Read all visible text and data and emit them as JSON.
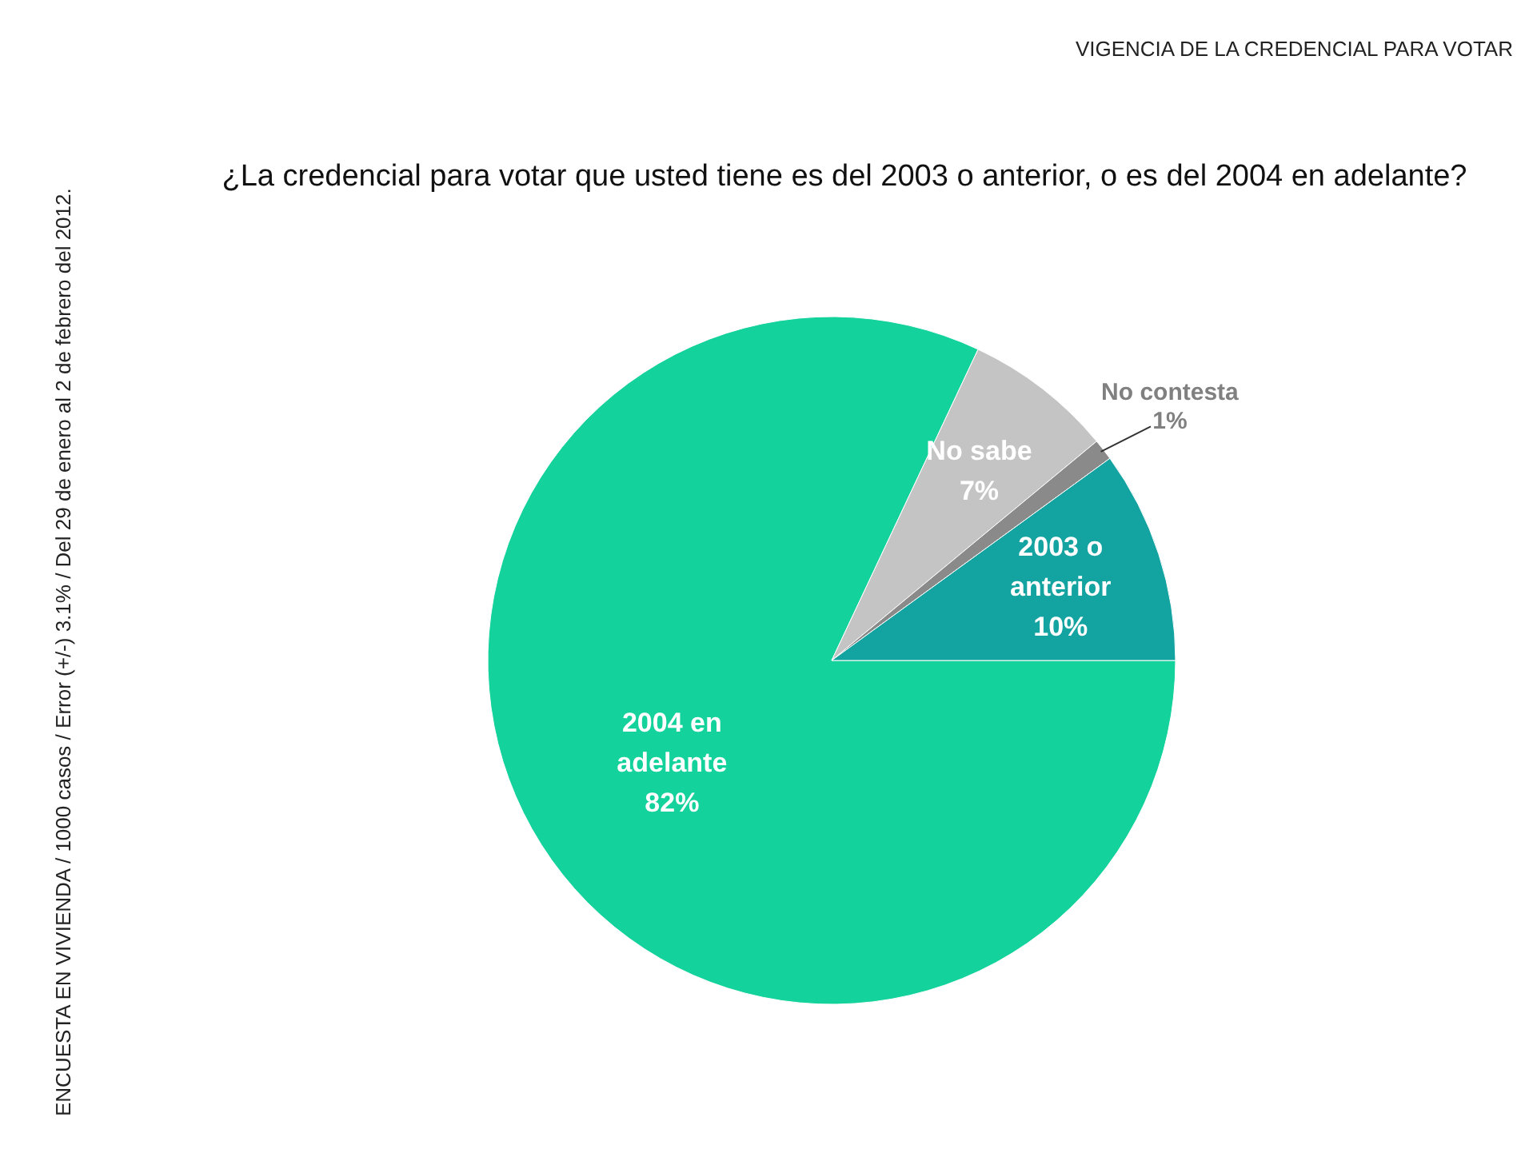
{
  "chart_data": {
    "type": "pie",
    "title": "¿La credencial para votar que usted tiene es del 2003 o anterior, o es del 2004 en adelante?",
    "subtitle": "VIGENCIA DE LA CREDENCIAL PARA VOTAR",
    "categories": [
      "2004 en adelante",
      "No sabe",
      "No contesta",
      "2003 o anterior"
    ],
    "values": [
      82,
      7,
      1,
      10
    ],
    "value_labels": [
      "82%",
      "7%",
      "1%",
      "10%"
    ],
    "colors": [
      "#14d29c",
      "#c4c4c4",
      "#8a8a8a",
      "#13a3a0"
    ],
    "annotations": [
      "ENCUESTA EN VIVIENDA / 1000 casos / Error (+/-) 3.1% / Del 29 de enero al 2 de febrero del 2012."
    ]
  }
}
